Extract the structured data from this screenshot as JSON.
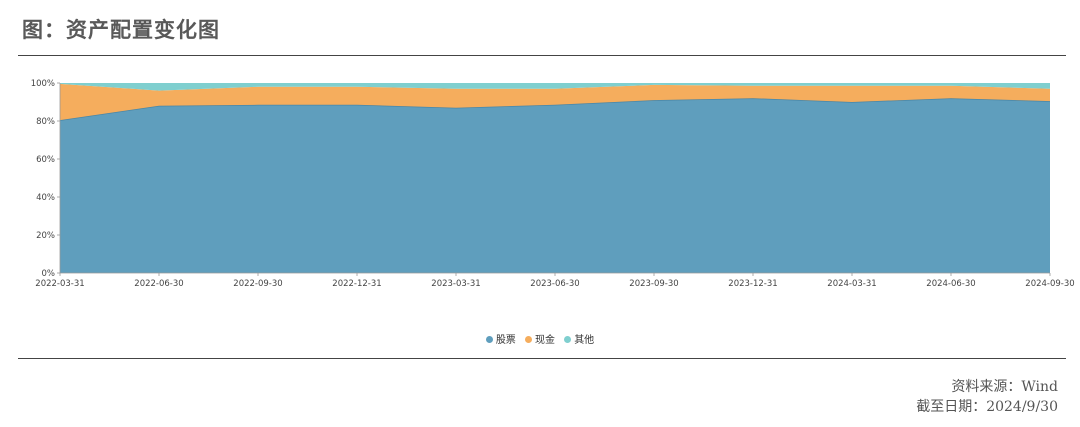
{
  "title": "图：资产配置变化图",
  "source": "资料来源：Wind",
  "cutoff": "截至日期：2024/9/30",
  "chart_data": {
    "type": "area",
    "stacked": true,
    "percent": true,
    "x": [
      "2022-03-31",
      "2022-06-30",
      "2022-09-30",
      "2022-12-31",
      "2023-03-31",
      "2023-06-30",
      "2023-09-30",
      "2023-12-31",
      "2024-03-31",
      "2024-06-30",
      "2024-09-30"
    ],
    "series": [
      {
        "name": "股票",
        "color": "#5f9ebd",
        "values": [
          80.5,
          88,
          88.5,
          88.5,
          87,
          88.5,
          91,
          92,
          90,
          92,
          90.5
        ]
      },
      {
        "name": "现金",
        "color": "#f5ad5d",
        "values": [
          19,
          8,
          9.5,
          9.5,
          10,
          8.5,
          8,
          6.5,
          8.5,
          6.5,
          6.5
        ]
      },
      {
        "name": "其他",
        "color": "#7fcfcf",
        "values": [
          0.5,
          4,
          2,
          2,
          3,
          3,
          1,
          1.5,
          1.5,
          1.5,
          3
        ]
      }
    ],
    "ylim": [
      0,
      100
    ],
    "yticks": [
      "0%",
      "20%",
      "40%",
      "60%",
      "80%",
      "100%"
    ],
    "legend_position": "bottom-center",
    "grid": false
  }
}
